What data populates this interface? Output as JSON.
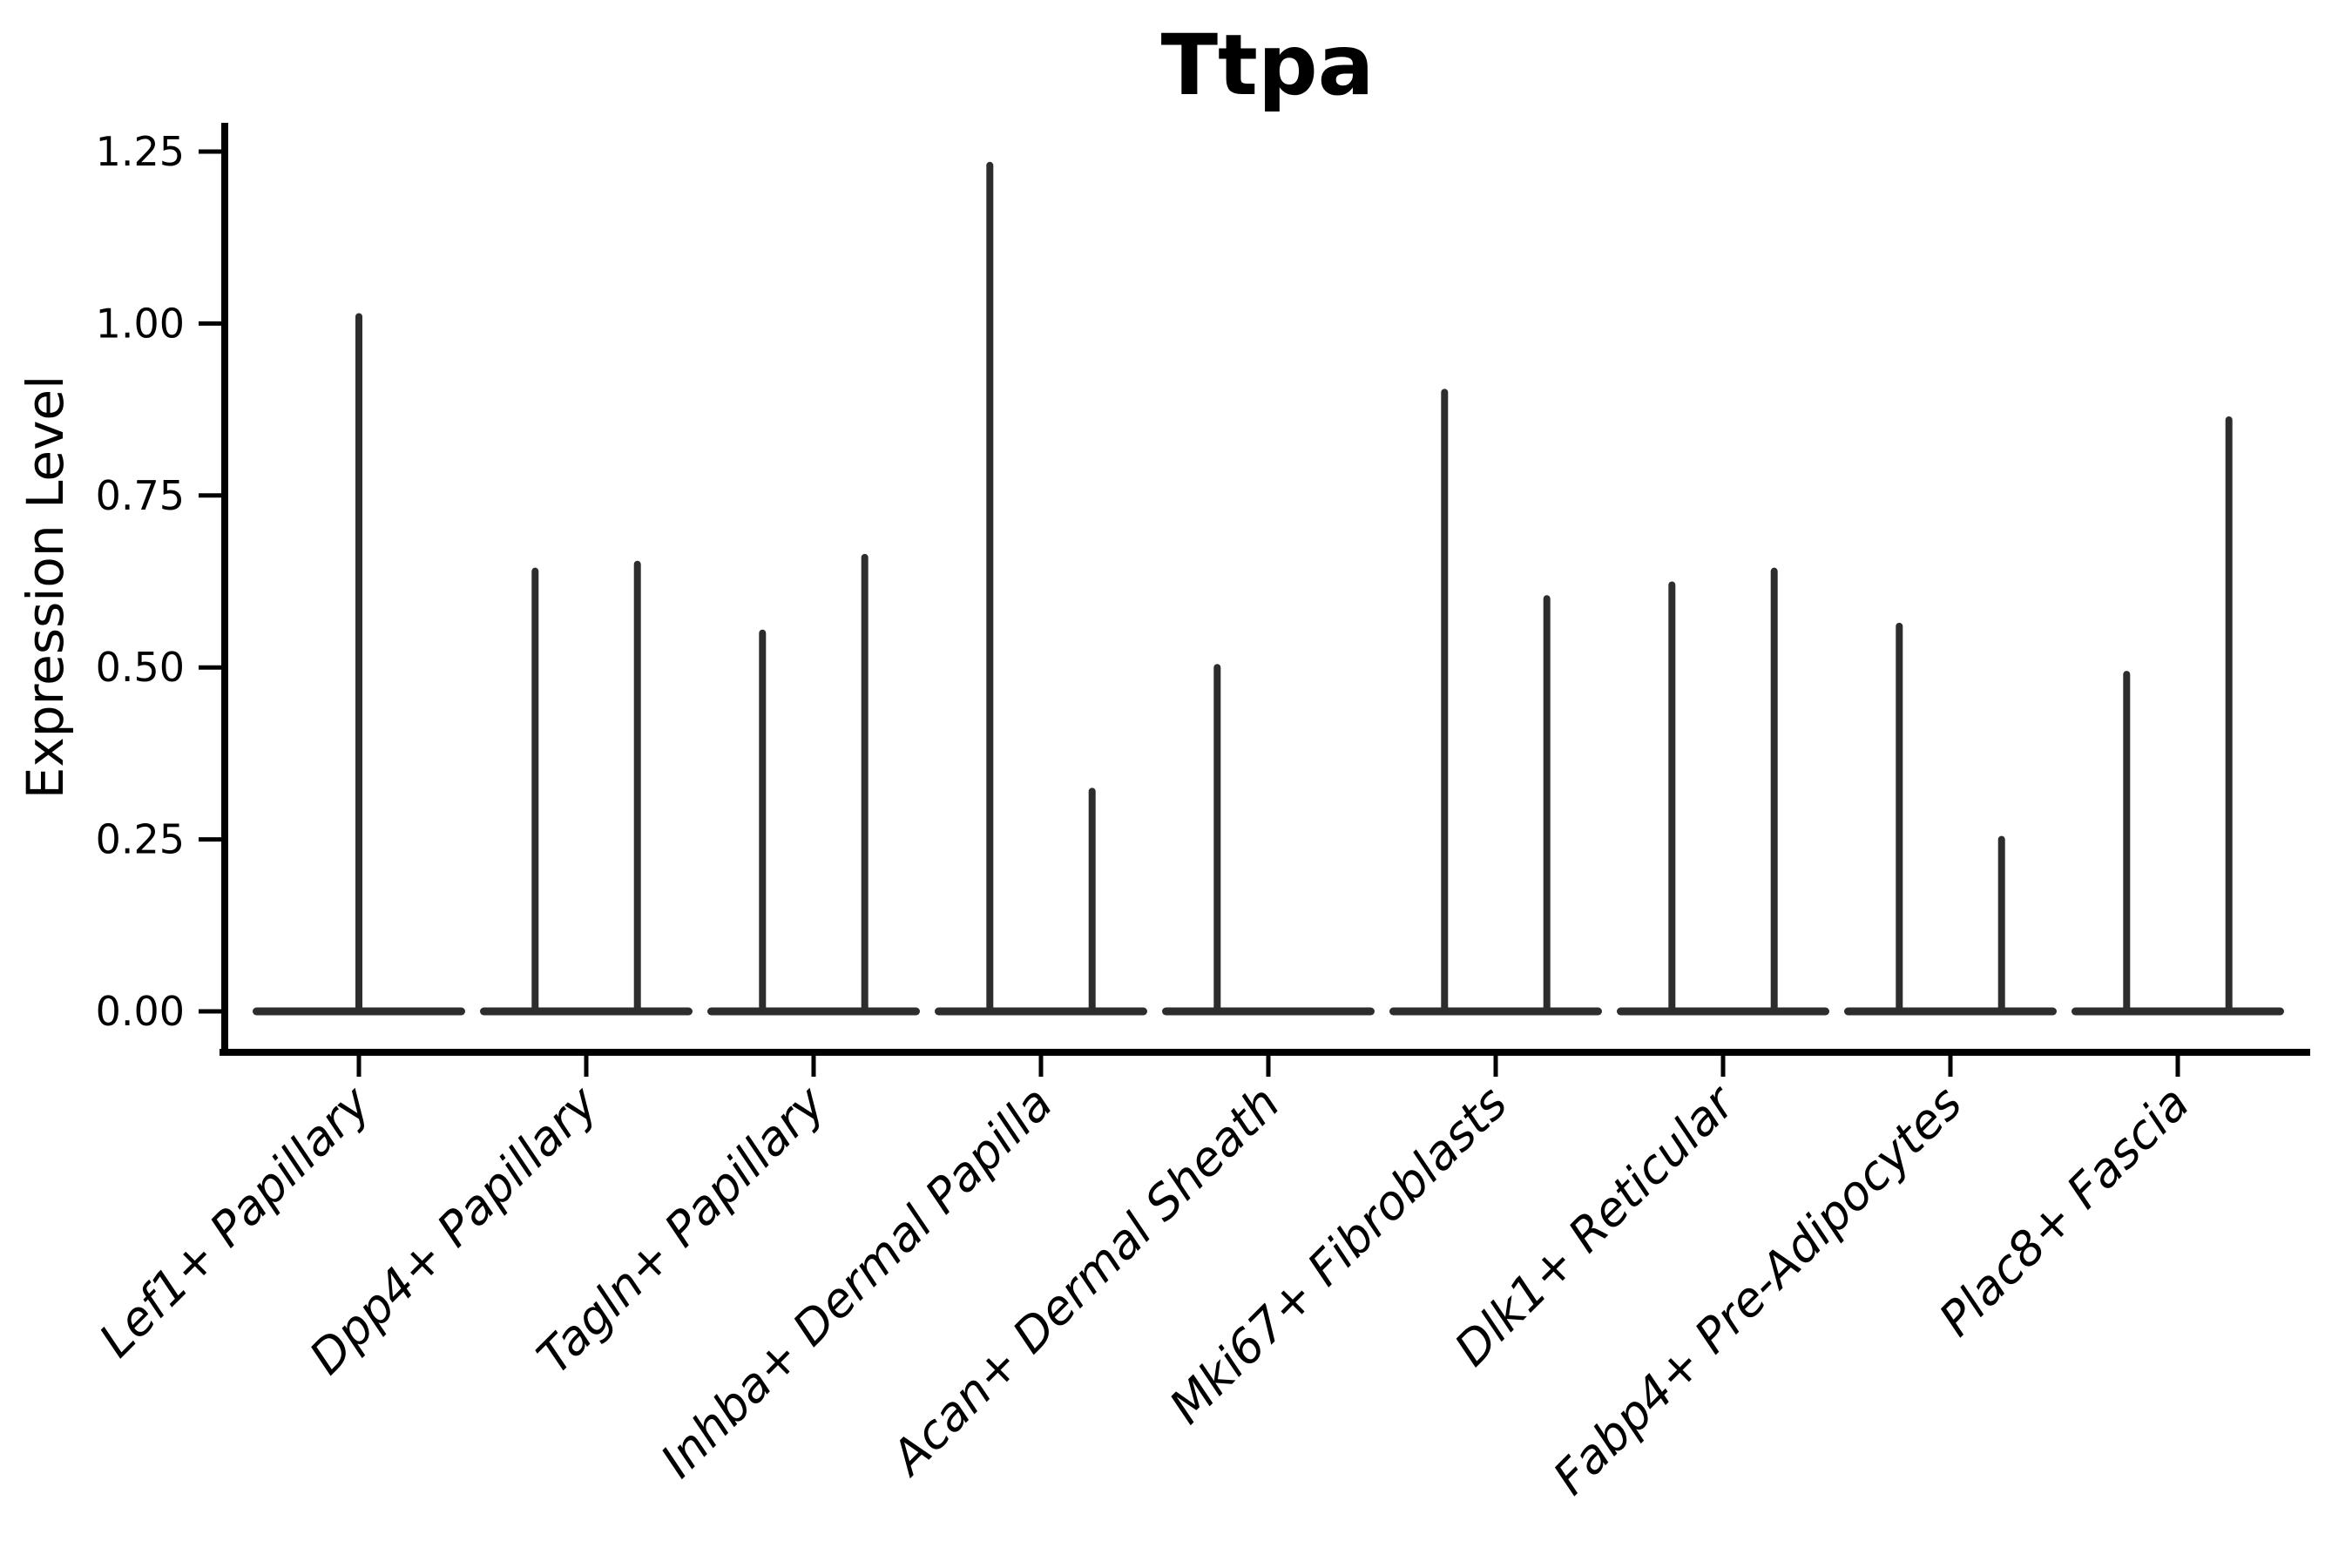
{
  "chart_data": {
    "type": "violin",
    "title": "Ttpa",
    "ylabel": "Expression Level",
    "xlabel": "",
    "ylim": [
      -0.06,
      1.29
    ],
    "grid": false,
    "legend": "none",
    "colors": {
      "violin": "#2d2d2d",
      "axis": "#000000",
      "text": "#000000",
      "background": "#ffffff"
    },
    "yticks": [
      {
        "value": 0.0,
        "label": "0.00"
      },
      {
        "value": 0.25,
        "label": "0.25"
      },
      {
        "value": 0.5,
        "label": "0.50"
      },
      {
        "value": 0.75,
        "label": "0.75"
      },
      {
        "value": 1.0,
        "label": "1.00"
      },
      {
        "value": 1.25,
        "label": "1.25"
      }
    ],
    "violins": [
      {
        "category": "Lef1+ Papillary",
        "spikes": [
          {
            "position": "center",
            "value": 1.01
          }
        ]
      },
      {
        "category": "Dpp4+ Papillary",
        "spikes": [
          {
            "position": "left",
            "value": 0.64
          },
          {
            "position": "right",
            "value": 0.65
          }
        ]
      },
      {
        "category": "Tagln+ Papillary",
        "spikes": [
          {
            "position": "left",
            "value": 0.55
          },
          {
            "position": "right",
            "value": 0.66
          }
        ]
      },
      {
        "category": "Inhba+ Dermal Papilla",
        "spikes": [
          {
            "position": "left",
            "value": 1.23
          },
          {
            "position": "right",
            "value": 0.32
          }
        ]
      },
      {
        "category": "Acan+ Dermal Sheath",
        "spikes": [
          {
            "position": "left",
            "value": 0.5
          }
        ]
      },
      {
        "category": "Mki67+ Fibroblasts",
        "spikes": [
          {
            "position": "left",
            "value": 0.9
          },
          {
            "position": "right",
            "value": 0.6
          }
        ]
      },
      {
        "category": "Dlk1+ Reticular",
        "spikes": [
          {
            "position": "left",
            "value": 0.62
          },
          {
            "position": "right",
            "value": 0.64
          }
        ]
      },
      {
        "category": "Fabp4+ Pre-Adipocytes",
        "spikes": [
          {
            "position": "left",
            "value": 0.56
          },
          {
            "position": "right",
            "value": 0.25
          }
        ]
      },
      {
        "category": "Plac8+ Fascia",
        "spikes": [
          {
            "position": "left",
            "value": 0.49
          },
          {
            "position": "right",
            "value": 0.86
          }
        ]
      }
    ]
  }
}
